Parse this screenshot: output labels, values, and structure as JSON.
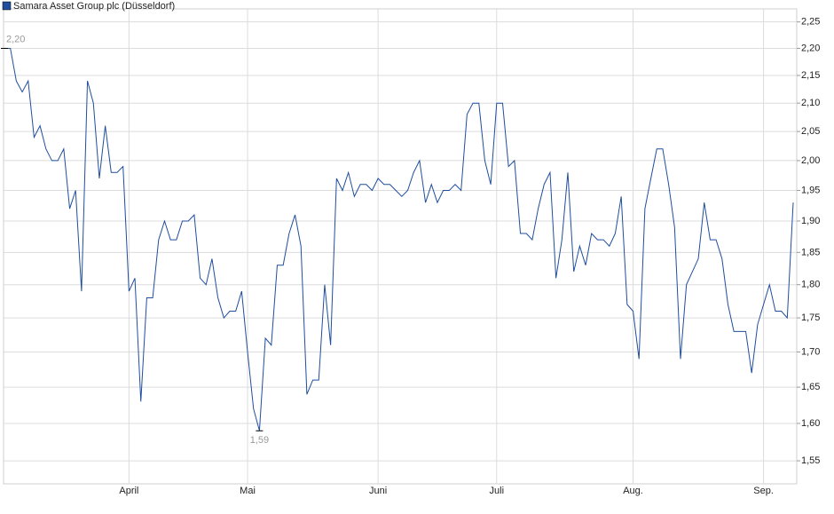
{
  "chart_data": {
    "type": "line",
    "legend": "Samara Asset Group plc (Düsseldorf)",
    "color": "#1f4e9c",
    "log_scale": true,
    "grid": true,
    "legend_position": "top-left",
    "categories": [
      null,
      null,
      null,
      null,
      null,
      null,
      null,
      null,
      null,
      null,
      null,
      null,
      null,
      null,
      null,
      null,
      null,
      null,
      null,
      null,
      null,
      "April",
      null,
      null,
      null,
      null,
      null,
      null,
      null,
      null,
      null,
      null,
      null,
      null,
      null,
      null,
      null,
      null,
      null,
      null,
      null,
      "Mai",
      null,
      null,
      null,
      null,
      null,
      null,
      null,
      null,
      null,
      null,
      null,
      null,
      null,
      null,
      null,
      null,
      null,
      null,
      null,
      null,
      null,
      "Juni",
      null,
      null,
      null,
      null,
      null,
      null,
      null,
      null,
      null,
      null,
      null,
      null,
      null,
      null,
      null,
      null,
      null,
      null,
      null,
      "Juli",
      null,
      null,
      null,
      null,
      null,
      null,
      null,
      null,
      null,
      null,
      null,
      null,
      null,
      null,
      null,
      null,
      null,
      null,
      null,
      null,
      null,
      null,
      "Aug.",
      null,
      null,
      null,
      null,
      null,
      null,
      null,
      null,
      null,
      null,
      null,
      null,
      null,
      null,
      null,
      null,
      null,
      null,
      null,
      null,
      null,
      "Sep.",
      null,
      null,
      null,
      null,
      null
    ],
    "values": [
      2.2,
      2.2,
      2.14,
      2.12,
      2.14,
      2.04,
      2.06,
      2.02,
      2.0,
      2.0,
      2.02,
      1.92,
      1.95,
      1.79,
      2.14,
      2.1,
      1.97,
      2.06,
      1.98,
      1.98,
      1.99,
      1.79,
      1.81,
      1.63,
      1.78,
      1.78,
      1.87,
      1.9,
      1.87,
      1.87,
      1.9,
      1.9,
      1.91,
      1.81,
      1.8,
      1.84,
      1.78,
      1.75,
      1.76,
      1.76,
      1.79,
      1.7,
      1.62,
      1.59,
      1.72,
      1.71,
      1.83,
      1.83,
      1.88,
      1.91,
      1.86,
      1.64,
      1.66,
      1.66,
      1.8,
      1.71,
      1.97,
      1.95,
      1.98,
      1.94,
      1.96,
      1.96,
      1.95,
      1.97,
      1.96,
      1.96,
      1.95,
      1.94,
      1.95,
      1.98,
      2.0,
      1.93,
      1.96,
      1.93,
      1.95,
      1.95,
      1.96,
      1.95,
      2.08,
      2.1,
      2.1,
      2.0,
      1.96,
      2.1,
      2.1,
      1.99,
      2.0,
      1.88,
      1.88,
      1.87,
      1.92,
      1.96,
      1.98,
      1.81,
      1.87,
      1.98,
      1.82,
      1.86,
      1.83,
      1.88,
      1.87,
      1.87,
      1.86,
      1.88,
      1.94,
      1.77,
      1.76,
      1.69,
      1.92,
      1.97,
      2.02,
      2.02,
      1.96,
      1.89,
      1.69,
      1.8,
      1.82,
      1.84,
      1.93,
      1.87,
      1.87,
      1.84,
      1.77,
      1.73,
      1.73,
      1.73,
      1.67,
      1.74,
      1.77,
      1.8,
      1.76,
      1.76,
      1.75,
      1.93
    ],
    "value_labels": [
      "2,20",
      null,
      null,
      null,
      null,
      null,
      null,
      null,
      null,
      null,
      null,
      null,
      null,
      null,
      null,
      null,
      null,
      null,
      null,
      null,
      null,
      null,
      null,
      null,
      null,
      null,
      null,
      null,
      null,
      null,
      null,
      null,
      null,
      null,
      null,
      null,
      null,
      null,
      null,
      null,
      null,
      null,
      null,
      "1,59",
      null,
      null,
      null,
      null,
      null,
      null,
      null,
      null,
      null,
      null,
      null,
      null,
      null,
      null,
      null,
      null,
      null,
      null,
      null,
      null,
      null,
      null,
      null,
      null,
      null,
      null,
      null,
      null,
      null,
      null,
      null,
      null,
      null,
      null,
      null,
      null,
      null,
      null,
      null,
      null,
      null,
      null,
      null,
      null,
      null,
      null,
      null,
      null,
      null,
      null,
      null,
      null,
      null,
      null,
      null,
      null,
      null,
      null,
      null,
      null,
      null,
      null,
      null,
      null,
      null,
      null,
      null,
      null,
      null,
      null,
      null,
      null,
      null,
      null,
      null,
      null,
      null,
      null,
      null,
      null,
      null,
      null,
      null,
      null,
      null,
      null,
      null,
      null,
      null,
      null
    ],
    "ylim": [
      1.52,
      2.275
    ],
    "yticks": [
      {
        "value": 1.55,
        "label": "1,55"
      },
      {
        "value": 1.6,
        "label": "1,60"
      },
      {
        "value": 1.65,
        "label": "1,65"
      },
      {
        "value": 1.7,
        "label": "1,70"
      },
      {
        "value": 1.75,
        "label": "1,75"
      },
      {
        "value": 1.8,
        "label": "1,80"
      },
      {
        "value": 1.85,
        "label": "1,85"
      },
      {
        "value": 1.9,
        "label": "1,90"
      },
      {
        "value": 1.95,
        "label": "1,95"
      },
      {
        "value": 2.0,
        "label": "2,00"
      },
      {
        "value": 2.05,
        "label": "2,05"
      },
      {
        "value": 2.1,
        "label": "2,10"
      },
      {
        "value": 2.15,
        "label": "2,15"
      },
      {
        "value": 2.2,
        "label": "2,20"
      },
      {
        "value": 2.25,
        "label": "2,25"
      }
    ]
  }
}
